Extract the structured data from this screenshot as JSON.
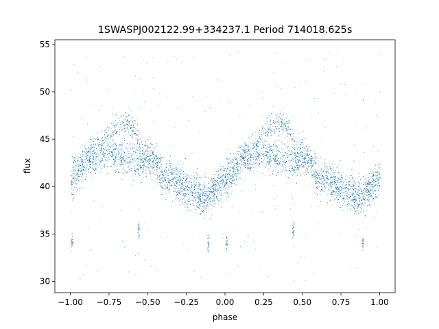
{
  "chart_data": {
    "type": "scatter",
    "title": "1SWASPJ002122.99+334237.1 Period 714018.625s",
    "xlabel": "phase",
    "ylabel": "flux",
    "xlim": [
      -1.1,
      1.1
    ],
    "ylim": [
      28.8,
      55.5
    ],
    "xticks": [
      -1.0,
      -0.75,
      -0.5,
      -0.25,
      0.0,
      0.25,
      0.5,
      0.75,
      1.0
    ],
    "xtick_labels": [
      "−1.00",
      "−0.75",
      "−0.50",
      "−0.25",
      "0.00",
      "0.25",
      "0.50",
      "0.75",
      "1.00"
    ],
    "yticks": [
      30,
      35,
      40,
      45,
      50,
      55
    ],
    "ytick_labels": [
      "30",
      "35",
      "40",
      "45",
      "50",
      "55"
    ],
    "grid": false,
    "point_color": "#1f77b4",
    "series": [
      {
        "phase_range": [
          -1.0,
          1.0
        ],
        "trend": [
          [
            0.0,
            40.5
          ],
          [
            0.05,
            42.0
          ],
          [
            0.1,
            42.8
          ],
          [
            0.15,
            43.3
          ],
          [
            0.2,
            44.0
          ],
          [
            0.25,
            43.5
          ],
          [
            0.3,
            43.2
          ],
          [
            0.35,
            43.2
          ],
          [
            0.4,
            43.0
          ],
          [
            0.45,
            42.8
          ],
          [
            0.5,
            43.3
          ],
          [
            0.55,
            42.8
          ],
          [
            0.6,
            41.0
          ],
          [
            0.65,
            41.0
          ],
          [
            0.7,
            40.5
          ],
          [
            0.75,
            39.8
          ],
          [
            0.8,
            39.5
          ],
          [
            0.85,
            39.0
          ],
          [
            0.9,
            39.2
          ],
          [
            0.95,
            40.0
          ],
          [
            1.0,
            41.0
          ]
        ],
        "upper_branch": [
          [
            0.22,
            45.2
          ],
          [
            0.27,
            46.0
          ],
          [
            0.32,
            46.7
          ],
          [
            0.37,
            46.8
          ],
          [
            0.42,
            46.0
          ],
          [
            0.45,
            44.5
          ]
        ],
        "dip_clusters": [
          [
            -0.99,
            34.2
          ],
          [
            -0.56,
            35.5
          ],
          [
            -0.11,
            34.1
          ],
          [
            0.01,
            34.2
          ],
          [
            0.44,
            35.5
          ],
          [
            0.89,
            34.1
          ]
        ],
        "flux_floor": 30.0,
        "flux_ceiling": 54.5
      }
    ]
  }
}
